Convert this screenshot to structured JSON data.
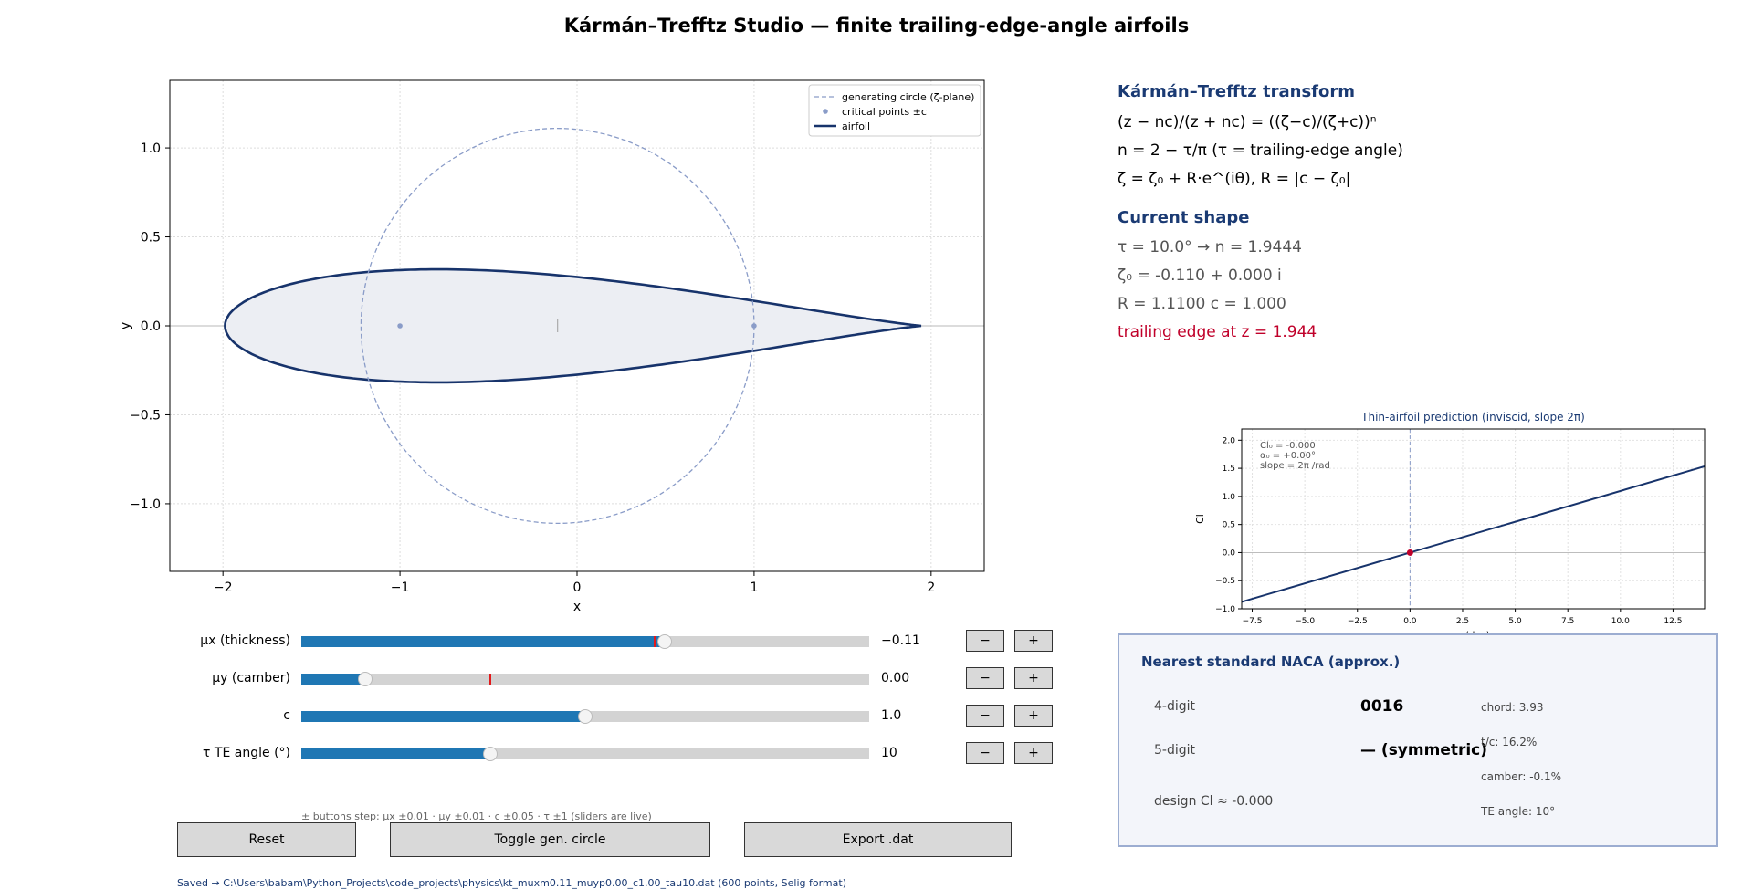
{
  "title": "Kármán–Trefftz Studio  —  finite trailing-edge-angle airfoils",
  "main_plot": {
    "xlabel": "x",
    "ylabel": "y",
    "xlim": [
      -2.3,
      2.3
    ],
    "ylim": [
      -1.38,
      1.38
    ],
    "xticks": [
      -2,
      -1,
      0,
      1,
      2
    ],
    "xtick_labels": [
      "−2",
      "−1",
      "0",
      "1",
      "2"
    ],
    "yticks": [
      -1.0,
      -0.5,
      0.0,
      0.5,
      1.0
    ],
    "ytick_labels": [
      "−1.0",
      "−0.5",
      "0.0",
      "0.5",
      "1.0"
    ],
    "legend": {
      "placement": "top-right",
      "circle": "generating circle (ζ-plane)",
      "points": "critical points ±c",
      "airfoil": "airfoil"
    },
    "circle": {
      "cx": -0.11,
      "cy": 0.0,
      "r": 1.11
    },
    "critical_points": [
      [
        -1.0,
        0.0
      ],
      [
        1.0,
        0.0
      ]
    ],
    "center_marker": [
      -0.11,
      0.0
    ],
    "colors": {
      "airfoil": "#17336b",
      "circle": "#8a9cc8",
      "fill": "#eceef3",
      "points": "#8a9cc8"
    }
  },
  "info": {
    "h1": "Kármán–Trefftz transform",
    "eq1": "(z − nc)/(z + nc) = ((ζ−c)/(ζ+c))ⁿ",
    "eq2": "n = 2 − τ/π    (τ = trailing-edge angle)",
    "eq3": "ζ = ζ₀ + R·e^(iθ),   R = |c − ζ₀|",
    "h2": "Current shape",
    "l1": "τ = 10.0°   →   n = 1.9444",
    "l2": "ζ₀ = -0.110 + 0.000 i",
    "l3": "R = 1.1100     c = 1.000",
    "l4": "trailing edge at z = 1.944"
  },
  "chart_data": {
    "type": "line",
    "title": "Thin-airfoil prediction  (inviscid, slope 2π)",
    "xlabel": "α (deg)",
    "ylabel": "Cl",
    "xlim": [
      -8,
      14
    ],
    "ylim": [
      -1.0,
      2.2
    ],
    "xticks": [
      -7.5,
      -5.0,
      -2.5,
      0.0,
      2.5,
      5.0,
      7.5,
      10.0,
      12.5
    ],
    "xtick_labels": [
      "−7.5",
      "−5.0",
      "−2.5",
      "0.0",
      "2.5",
      "5.0",
      "7.5",
      "10.0",
      "12.5"
    ],
    "yticks": [
      -1.0,
      -0.5,
      0.0,
      0.5,
      1.0,
      1.5,
      2.0
    ],
    "ytick_labels": [
      "−1.0",
      "−0.5",
      "0.0",
      "0.5",
      "1.0",
      "1.5",
      "2.0"
    ],
    "x": [
      -8,
      14
    ],
    "y": [
      -0.877,
      1.535
    ],
    "marker": [
      0.0,
      0.0
    ],
    "annotation": [
      "Cl₀ = -0.000",
      "α₀ = +0.00°",
      "slope = 2π /rad"
    ],
    "grid": true,
    "colors": {
      "line": "#17336b",
      "marker": "#c0002a",
      "vline": "#8a9cc8"
    }
  },
  "sliders": [
    {
      "label": "μx  (thickness)",
      "value_text": "−0.11",
      "fraction": 0.64,
      "init_fraction": 0.622
    },
    {
      "label": "μy  (camber)",
      "value_text": "0.00",
      "fraction": 0.112,
      "init_fraction": 0.333
    },
    {
      "label": "c",
      "value_text": "1.0",
      "fraction": 0.5,
      "init_fraction": null
    },
    {
      "label": "τ  TE angle (°)",
      "value_text": "10",
      "fraction": 0.333,
      "init_fraction": null
    }
  ],
  "buttons": {
    "minus": "−",
    "plus": "+",
    "reset": "Reset",
    "toggle": "Toggle gen. circle",
    "export": "Export .dat"
  },
  "step_text": "± buttons step:  μx ±0.01 · μy ±0.01 · c ±0.05 · τ ±1      (sliders are live)",
  "saved_text": "Saved → C:\\Users\\babam\\Python_Projects\\code_projects\\physics\\kt_muxm0.11_muyp0.00_c1.00_tau10.dat   (600 points, Selig format)",
  "naca": {
    "title": "Nearest standard NACA  (approx.)",
    "four_label": "4-digit",
    "four_value": "0016",
    "five_label": "5-digit",
    "five_value": "—  (symmetric)",
    "design_cl": "design Cl ≈ -0.000",
    "chord": "chord: 3.93",
    "tc": "t/c: 16.2%",
    "camber": "camber: -0.1%",
    "te_angle": "TE angle: 10°"
  }
}
